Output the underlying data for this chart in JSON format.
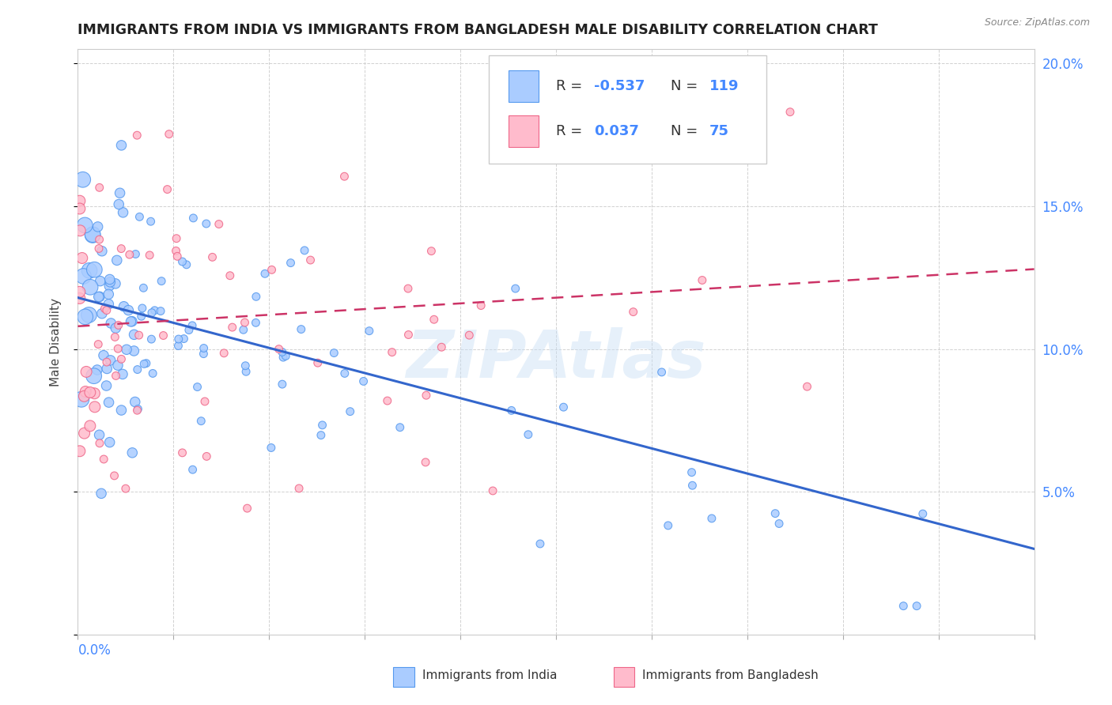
{
  "title": "IMMIGRANTS FROM INDIA VS IMMIGRANTS FROM BANGLADESH MALE DISABILITY CORRELATION CHART",
  "source_text": "Source: ZipAtlas.com",
  "ylabel": "Male Disability",
  "xmin": 0.0,
  "xmax": 0.5,
  "ymin": 0.0,
  "ymax": 0.205,
  "yticks": [
    0.0,
    0.05,
    0.1,
    0.15,
    0.2
  ],
  "ytick_labels": [
    "",
    "5.0%",
    "10.0%",
    "15.0%",
    "20.0%"
  ],
  "color_india": "#aaccff",
  "color_india_edge": "#5599ee",
  "color_bangladesh": "#ffbbcc",
  "color_bangladesh_edge": "#ee6688",
  "trendline_india_color": "#3366cc",
  "trendline_bangladesh_color": "#cc3366",
  "watermark": "ZIPAtlas",
  "india_trendline_x0": 0.0,
  "india_trendline_x1": 0.5,
  "india_trendline_y0": 0.118,
  "india_trendline_y1": 0.03,
  "bangladesh_trendline_x0": 0.0,
  "bangladesh_trendline_x1": 0.5,
  "bangladesh_trendline_y0": 0.108,
  "bangladesh_trendline_y1": 0.128
}
